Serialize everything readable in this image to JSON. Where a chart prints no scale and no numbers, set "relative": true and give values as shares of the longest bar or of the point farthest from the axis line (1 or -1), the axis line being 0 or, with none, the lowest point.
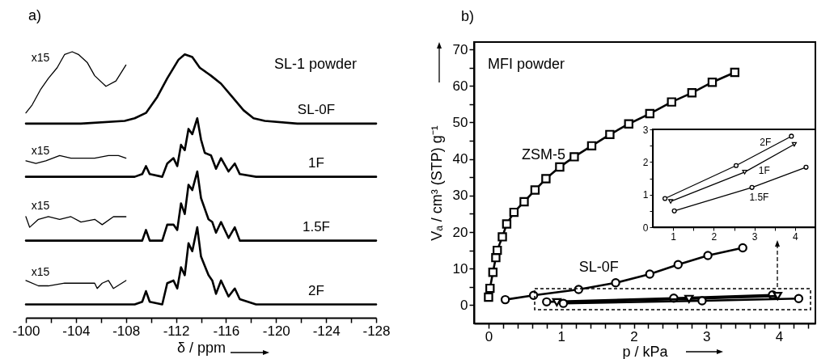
{
  "chart_data": [
    {
      "type": "line",
      "title": "a)",
      "xlabel": "δ / ppm",
      "relative": true,
      "xlim": [
        -100,
        -128
      ],
      "xticks": [
        -100,
        {
          "value": -102,
          "label": null
        },
        -104,
        {
          "value": -106,
          "label": null
        },
        -108,
        {
          "value": -110,
          "label": null
        },
        -112,
        {
          "value": -114,
          "label": null
        },
        -116,
        {
          "value": -118,
          "label": null
        },
        -120,
        {
          "value": -122,
          "label": null
        },
        -124,
        {
          "value": -126,
          "label": null
        },
        -128
      ],
      "annotations": [
        "SL-1 powder",
        "x15",
        "x15",
        "x15",
        "x15"
      ],
      "series": [
        {
          "name": "SL-0F",
          "color": "#000000",
          "x": [
            -100,
            -104.4,
            -107.9,
            -108.7,
            -109.6,
            -110.5,
            -111.3,
            -112.2,
            -112.7,
            -113.3,
            -113.9,
            -114.8,
            -115.6,
            -116.5,
            -117.4,
            -118.2,
            -119.1,
            -121.7,
            -128
          ],
          "values": [
            0.73,
            0.73,
            0.74,
            0.75,
            0.77,
            0.83,
            0.9,
            0.97,
            0.99,
            0.98,
            0.94,
            0.91,
            0.88,
            0.83,
            0.78,
            0.75,
            0.74,
            0.73,
            0.73
          ]
        },
        {
          "color": "#000000",
          "x": [
            -100,
            -100.5,
            -101.2,
            -101.8,
            -102.5,
            -103.1,
            -103.7,
            -104.2,
            -104.9,
            -105.5,
            -106.4,
            -107.2,
            -108.0
          ],
          "values": [
            0.77,
            0.8,
            0.86,
            0.9,
            0.94,
            0.99,
            1.0,
            0.99,
            0.96,
            0.91,
            0.87,
            0.89,
            0.95
          ]
        },
        {
          "name": "1F",
          "color": "#000000",
          "x": [
            -100,
            -108.7,
            -109.3,
            -109.6,
            -109.9,
            -110.9,
            -111.3,
            -111.8,
            -112.1,
            -112.4,
            -112.7,
            -113.0,
            -113.3,
            -113.7,
            -114.0,
            -114.3,
            -114.8,
            -115.2,
            -115.6,
            -116.2,
            -116.7,
            -117.1,
            -118.4,
            -128
          ],
          "values": [
            0.53,
            0.53,
            0.54,
            0.57,
            0.54,
            0.53,
            0.58,
            0.6,
            0.57,
            0.65,
            0.63,
            0.71,
            0.69,
            0.75,
            0.67,
            0.62,
            0.61,
            0.56,
            0.6,
            0.55,
            0.58,
            0.54,
            0.53,
            0.53
          ]
        },
        {
          "color": "#000000",
          "x": [
            -100,
            -100.8,
            -101.6,
            -102.7,
            -103.6,
            -104.4,
            -105.5,
            -106.6,
            -107.4,
            -108.0
          ],
          "values": [
            0.59,
            0.58,
            0.59,
            0.61,
            0.6,
            0.6,
            0.6,
            0.61,
            0.61,
            0.6
          ]
        },
        {
          "name": "1.5F",
          "color": "#000000",
          "x": [
            -100,
            -108.7,
            -109.3,
            -109.6,
            -109.9,
            -110.9,
            -111.3,
            -111.8,
            -112.1,
            -112.4,
            -112.7,
            -113.0,
            -113.3,
            -113.7,
            -114.0,
            -114.6,
            -114.9,
            -115.2,
            -115.6,
            -116.2,
            -116.7,
            -117.1,
            -118.4,
            -128
          ],
          "values": [
            0.29,
            0.29,
            0.29,
            0.33,
            0.29,
            0.29,
            0.35,
            0.35,
            0.33,
            0.43,
            0.39,
            0.5,
            0.48,
            0.55,
            0.45,
            0.37,
            0.36,
            0.32,
            0.36,
            0.3,
            0.34,
            0.29,
            0.29,
            0.29
          ]
        },
        {
          "color": "#000000",
          "x": [
            -100,
            -100.3,
            -101.0,
            -101.8,
            -102.7,
            -103.6,
            -104.4,
            -105.5,
            -106.1,
            -107.0,
            -108.0
          ],
          "values": [
            0.38,
            0.34,
            0.37,
            0.38,
            0.37,
            0.38,
            0.36,
            0.37,
            0.35,
            0.38,
            0.38
          ]
        },
        {
          "name": "2F",
          "color": "#000000",
          "x": [
            -100,
            -108.7,
            -109.3,
            -109.6,
            -109.9,
            -110.9,
            -111.3,
            -111.8,
            -112.1,
            -112.4,
            -112.7,
            -113.0,
            -113.3,
            -113.7,
            -114.0,
            -114.6,
            -114.9,
            -115.2,
            -115.6,
            -116.2,
            -116.7,
            -117.1,
            -118.4,
            -128
          ],
          "values": [
            0.05,
            0.05,
            0.06,
            0.1,
            0.06,
            0.05,
            0.13,
            0.14,
            0.11,
            0.19,
            0.16,
            0.28,
            0.25,
            0.34,
            0.23,
            0.16,
            0.14,
            0.09,
            0.14,
            0.08,
            0.11,
            0.07,
            0.05,
            0.05
          ]
        },
        {
          "color": "#000000",
          "x": [
            -100,
            -101.0,
            -101.8,
            -103.1,
            -104.4,
            -105.5,
            -105.7,
            -106.1,
            -106.6,
            -107.0,
            -108.0
          ],
          "values": [
            0.14,
            0.12,
            0.12,
            0.13,
            0.13,
            0.13,
            0.11,
            0.13,
            0.14,
            0.11,
            0.14
          ]
        }
      ]
    },
    {
      "type": "line",
      "title": "b)",
      "xlabel": "p / kPa",
      "ylabel": "Vₐ / cm³ (STP) g⁻¹",
      "xlim": [
        -0.2,
        4.5
      ],
      "ylim": [
        -5,
        72
      ],
      "xticks": [
        0,
        {
          "value": 0.2,
          "label": null
        },
        {
          "value": 0.4,
          "label": null
        },
        {
          "value": 0.6,
          "label": null
        },
        {
          "value": 0.8,
          "label": null
        },
        1,
        {
          "value": 1.2,
          "label": null
        },
        {
          "value": 1.4,
          "label": null
        },
        {
          "value": 1.6,
          "label": null
        },
        {
          "value": 1.8,
          "label": null
        },
        2,
        {
          "value": 2.2,
          "label": null
        },
        {
          "value": 2.4,
          "label": null
        },
        {
          "value": 2.6,
          "label": null
        },
        {
          "value": 2.8,
          "label": null
        },
        3,
        {
          "value": 3.2,
          "label": null
        },
        {
          "value": 3.4,
          "label": null
        },
        {
          "value": 3.6,
          "label": null
        },
        {
          "value": 3.8,
          "label": null
        },
        4,
        {
          "value": 4.2,
          "label": null
        },
        {
          "value": 4.4,
          "label": null
        }
      ],
      "yticks": [
        0,
        {
          "value": 5,
          "label": null
        },
        10,
        {
          "value": 15,
          "label": null
        },
        20,
        {
          "value": 25,
          "label": null
        },
        30,
        {
          "value": 35,
          "label": null
        },
        40,
        {
          "value": 45,
          "label": null
        },
        50,
        {
          "value": 55,
          "label": null
        },
        60,
        {
          "value": 65,
          "label": null
        },
        70
      ],
      "annotations": [
        "MFI powder"
      ],
      "series": [
        {
          "name": "ZSM-5",
          "color": "#000000",
          "marker": "square",
          "x": [
            0.0,
            0.02,
            0.06,
            0.1,
            0.12,
            0.19,
            0.25,
            0.35,
            0.49,
            0.64,
            0.79,
            0.98,
            1.18,
            1.42,
            1.67,
            1.93,
            2.22,
            2.52,
            2.8,
            3.08,
            3.39
          ],
          "values": [
            2.2,
            4.6,
            9.0,
            13.0,
            15.0,
            18.7,
            22.2,
            25.4,
            28.3,
            31.5,
            34.6,
            37.8,
            40.6,
            43.6,
            46.7,
            49.6,
            52.4,
            55.6,
            58.1,
            61.0,
            63.7
          ]
        },
        {
          "name": "SL-0F",
          "color": "#000000",
          "marker": "circle",
          "x": [
            0.23,
            0.62,
            1.24,
            1.75,
            2.22,
            2.61,
            3.02,
            3.5
          ],
          "values": [
            1.5,
            2.7,
            4.3,
            6.1,
            8.5,
            11.1,
            13.6,
            15.7
          ]
        },
        {
          "color": "#000000",
          "marker": "circle",
          "x": [
            0.8,
            2.55,
            3.91
          ],
          "values": [
            0.9,
            1.9,
            2.8
          ]
        },
        {
          "color": "#000000",
          "marker": "triangle",
          "x": [
            0.94,
            2.76,
            3.98
          ],
          "values": [
            0.8,
            1.7,
            2.5
          ]
        },
        {
          "color": "#000000",
          "marker": "circle",
          "x": [
            1.03,
            2.94,
            4.27
          ],
          "values": [
            0.5,
            1.2,
            1.8
          ]
        }
      ]
    },
    {
      "type": "line",
      "xlim": [
        0.5,
        4.5
      ],
      "ylim": [
        0,
        3
      ],
      "xticks": [
        1,
        {
          "value": 1.5,
          "label": null
        },
        2,
        {
          "value": 2.5,
          "label": null
        },
        3,
        {
          "value": 3.5,
          "label": null
        },
        4
      ],
      "yticks": [
        0,
        {
          "value": 0.5,
          "label": null
        },
        1,
        {
          "value": 1.5,
          "label": null
        },
        2,
        {
          "value": 2.5,
          "label": null
        },
        3
      ],
      "series": [
        {
          "name": "2F",
          "color": "#000000",
          "marker": "circle",
          "x": [
            0.8,
            2.55,
            3.91
          ],
          "values": [
            0.88,
            1.89,
            2.79
          ]
        },
        {
          "name": "1F",
          "color": "#000000",
          "marker": "triangle",
          "x": [
            0.94,
            2.76,
            3.98
          ],
          "values": [
            0.79,
            1.69,
            2.54
          ]
        },
        {
          "name": "1.5F",
          "color": "#000000",
          "marker": "circle",
          "x": [
            1.03,
            2.94,
            4.27
          ],
          "values": [
            0.5,
            1.22,
            1.84
          ]
        }
      ]
    }
  ]
}
